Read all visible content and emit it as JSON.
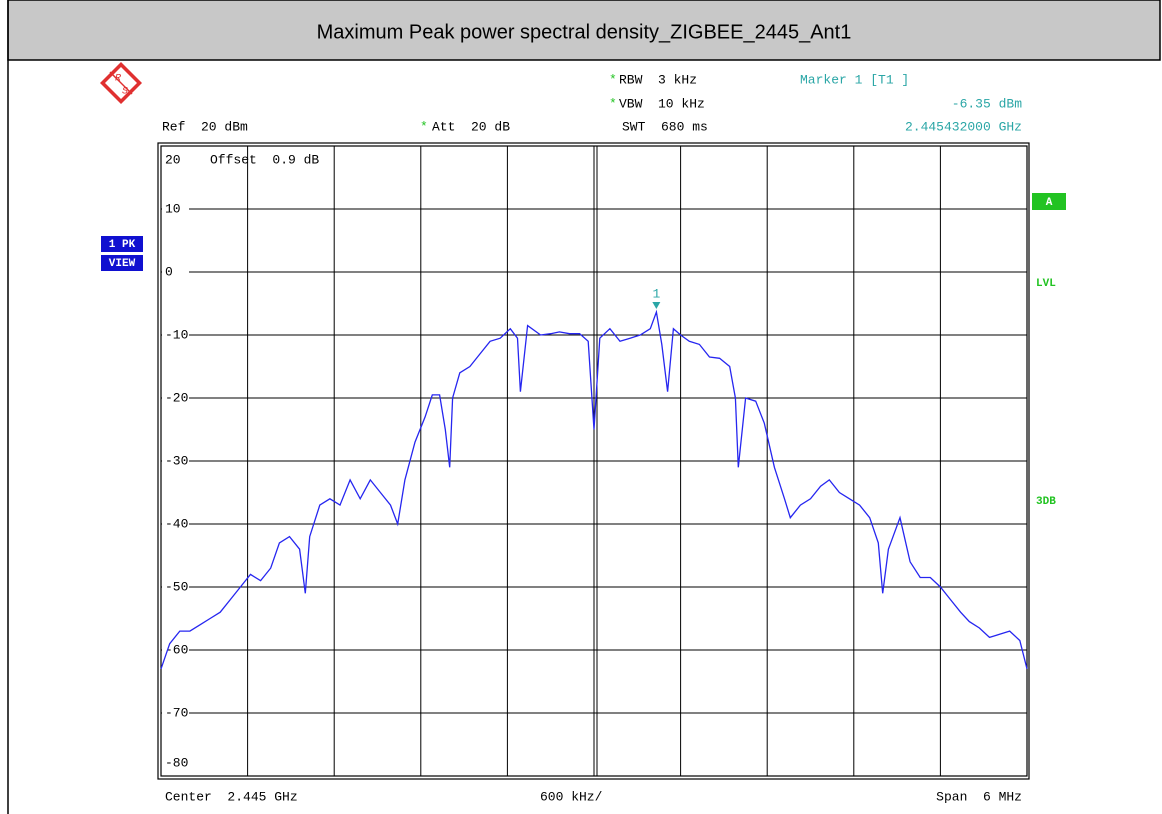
{
  "chart_data": {
    "type": "line",
    "title": "Maximum Peak power spectral density_ZIGBEE_2445_Ant1",
    "logo": [
      "R",
      "S"
    ],
    "settings": {
      "rbw": {
        "flag": "*",
        "text": "RBW  3 kHz"
      },
      "vbw": {
        "flag": "*",
        "text": "VBW  10 kHz"
      },
      "swt": {
        "text": "SWT  680 ms"
      },
      "ref": {
        "text": "Ref  20 dBm"
      },
      "att": {
        "flag": "*",
        "text": "Att  20 dB"
      },
      "offset": "Offset  0.9 dB",
      "center": "Center  2.445 GHz",
      "per_div": "600 kHz/",
      "span": "Span  6 MHz"
    },
    "marker_info": {
      "title": "Marker 1 [T1 ]",
      "level": "-6.35 dBm",
      "freq": "2.445432000 GHz"
    },
    "side_labels": {
      "trace": "1 PK",
      "view": "VIEW",
      "a": "A",
      "lvl": "LVL",
      "db3": "3DB"
    },
    "marker": {
      "label": "1",
      "x": 2.445432,
      "y": -6.35,
      "color": "#2aa6a6"
    },
    "xlim": [
      2.442,
      2.448
    ],
    "ylim": [
      -80,
      20
    ],
    "yticks": [
      20,
      10,
      0,
      -10,
      -20,
      -30,
      -40,
      -50,
      -60,
      -70,
      -80
    ],
    "grid": true,
    "x": [
      2.442,
      2.44206,
      2.44213,
      2.4422,
      2.44227,
      2.44234,
      2.44241,
      2.44248,
      2.44255,
      2.44262,
      2.44269,
      2.44276,
      2.44282,
      2.44289,
      2.44296,
      2.443,
      2.44303,
      2.4431,
      2.44317,
      2.44324,
      2.44331,
      2.44338,
      2.44345,
      2.44352,
      2.44359,
      2.44364,
      2.44369,
      2.44376,
      2.44383,
      2.44388,
      2.44393,
      2.44397,
      2.444,
      2.44402,
      2.44407,
      2.44414,
      2.44421,
      2.44428,
      2.44435,
      2.44442,
      2.44447,
      2.44449,
      2.44454,
      2.44463,
      2.4447,
      2.44476,
      2.44483,
      2.4449,
      2.44496,
      2.445,
      2.44504,
      2.44511,
      2.44518,
      2.44525,
      2.44532,
      2.44539,
      2.445432,
      2.44547,
      2.44551,
      2.44555,
      2.4456,
      2.44566,
      2.44573,
      2.4458,
      2.44587,
      2.44594,
      2.44598,
      2.446,
      2.44605,
      2.44612,
      2.44618,
      2.44625,
      2.44632,
      2.44636,
      2.44643,
      2.4465,
      2.44657,
      2.44663,
      2.4467,
      2.44677,
      2.44684,
      2.44691,
      2.44697,
      2.447,
      2.44704,
      2.44712,
      2.44719,
      2.44726,
      2.44733,
      2.4474,
      2.44747,
      2.44754,
      2.4476,
      2.44767,
      2.44774,
      2.44781,
      2.44788,
      2.44795,
      2.448
    ],
    "series": [
      {
        "color": "#2626f0",
        "values": [
          -63,
          -59,
          -57,
          -57,
          -56,
          -55,
          -54,
          -52,
          -50,
          -48,
          -49,
          -47,
          -43,
          -42,
          -44,
          -51,
          -42,
          -37,
          -36,
          -37,
          -33,
          -36,
          -33,
          -35,
          -37,
          -40,
          -33,
          -27,
          -23,
          -19.5,
          -19.5,
          -25,
          -31,
          -20,
          -16,
          -15,
          -13,
          -11,
          -10.5,
          -9,
          -10.5,
          -19,
          -8.5,
          -10,
          -9.8,
          -9.5,
          -9.8,
          -9.8,
          -11,
          -25,
          -10.5,
          -9,
          -11,
          -10.5,
          -10,
          -9,
          -6.35,
          -11.5,
          -19,
          -9,
          -10,
          -11,
          -11.5,
          -13.5,
          -13.7,
          -15,
          -20,
          -31,
          -20,
          -20.5,
          -24,
          -31,
          -36,
          -39,
          -37,
          -36,
          -34,
          -33,
          -35,
          -36,
          -37,
          -39,
          -43,
          -51,
          -44,
          -39,
          -46,
          -48.5,
          -48.5,
          -50,
          -52,
          -54,
          -55.5,
          -56.5,
          -58,
          -57.5,
          -57,
          -58.5,
          -63
        ]
      }
    ]
  }
}
